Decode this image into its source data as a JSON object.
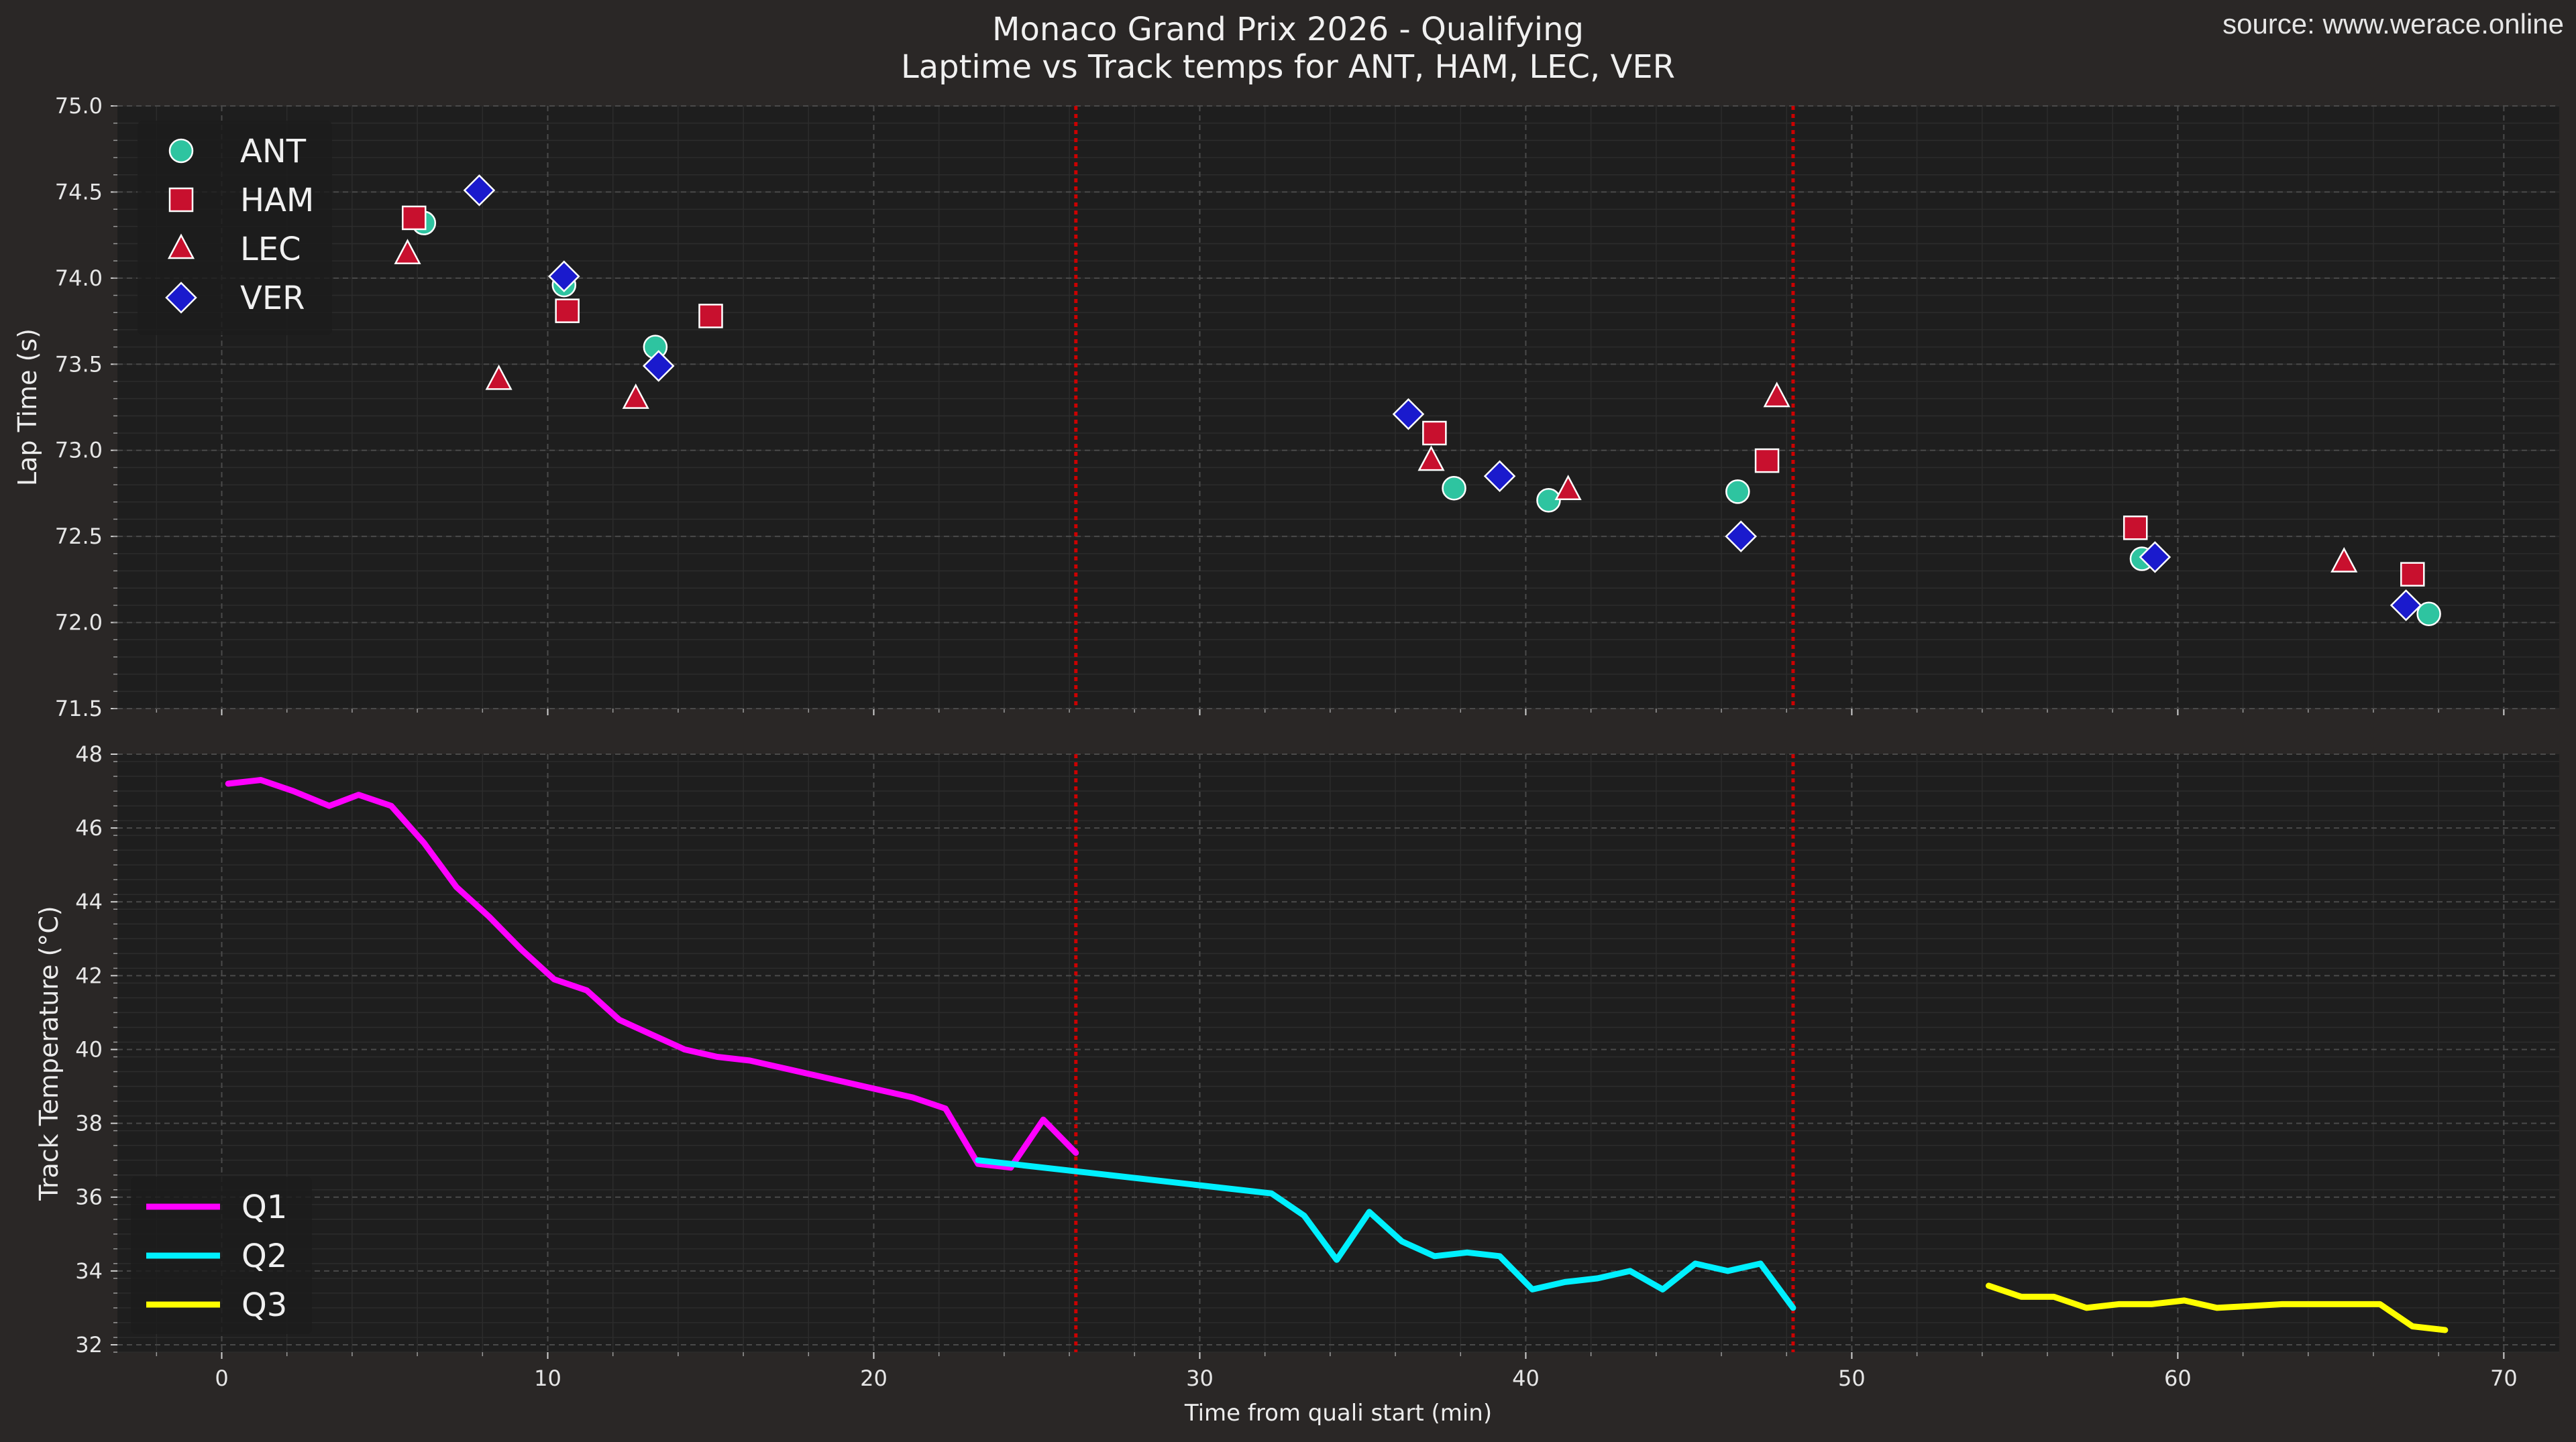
{
  "header": {
    "title": "Monaco Grand Prix 2026 - Qualifying",
    "subtitle": "Laptime vs Track temps for ANT, HAM, LEC, VER",
    "source": "source: www.werace.online"
  },
  "chart_data": [
    {
      "type": "scatter",
      "ylabel": "Lap Time (s)",
      "xlabel": "",
      "xlim": [
        -3.2,
        71.7
      ],
      "ylim": [
        71.5,
        75.0
      ],
      "xticks": [
        0,
        10,
        20,
        30,
        40,
        50,
        60,
        70
      ],
      "yticks": [
        "71.5",
        "72.0",
        "72.5",
        "73.0",
        "73.5",
        "74.0",
        "74.5",
        "75.0"
      ],
      "grid": true,
      "legend_position": "top-left",
      "session_boundaries": [
        26.2,
        48.2
      ],
      "series": [
        {
          "name": "ANT",
          "marker": "circle",
          "color": "#2ec4a0",
          "points": [
            [
              6.2,
              74.32
            ],
            [
              10.5,
              73.96
            ],
            [
              13.3,
              73.6
            ],
            [
              37.8,
              72.78
            ],
            [
              40.7,
              72.71
            ],
            [
              46.5,
              72.76
            ],
            [
              58.9,
              72.37
            ],
            [
              67.7,
              72.05
            ]
          ]
        },
        {
          "name": "HAM",
          "marker": "square",
          "color": "#c8102e",
          "points": [
            [
              5.9,
              74.35
            ],
            [
              10.6,
              73.81
            ],
            [
              15.0,
              73.78
            ],
            [
              37.2,
              73.1
            ],
            [
              47.4,
              72.94
            ],
            [
              58.7,
              72.55
            ],
            [
              67.2,
              72.28
            ]
          ]
        },
        {
          "name": "LEC",
          "marker": "triangle",
          "color": "#c8102e",
          "points": [
            [
              5.7,
              74.14
            ],
            [
              8.5,
              73.41
            ],
            [
              12.7,
              73.3
            ],
            [
              37.1,
              72.94
            ],
            [
              41.3,
              72.77
            ],
            [
              47.7,
              73.31
            ],
            [
              65.1,
              72.35
            ]
          ]
        },
        {
          "name": "VER",
          "marker": "diamond",
          "color": "#1a1acd",
          "points": [
            [
              7.9,
              74.51
            ],
            [
              10.5,
              74.01
            ],
            [
              13.4,
              73.49
            ],
            [
              36.4,
              73.21
            ],
            [
              39.2,
              72.85
            ],
            [
              46.6,
              72.5
            ],
            [
              59.3,
              72.38
            ],
            [
              67.0,
              72.1
            ]
          ]
        }
      ]
    },
    {
      "type": "line",
      "ylabel": "Track Temperature (°C)",
      "xlabel": "Time from quali start (min)",
      "xlim": [
        -3.2,
        71.7
      ],
      "ylim": [
        31.8,
        48.0
      ],
      "xticks": [
        0,
        10,
        20,
        30,
        40,
        50,
        60,
        70
      ],
      "yticks": [
        "32",
        "34",
        "36",
        "38",
        "40",
        "42",
        "44",
        "46",
        "48"
      ],
      "grid": true,
      "legend_position": "bottom-left",
      "session_boundaries": [
        26.2,
        48.2
      ],
      "series": [
        {
          "name": "Q1",
          "color": "#ff00ff",
          "points": [
            [
              0.2,
              47.2
            ],
            [
              1.2,
              47.3
            ],
            [
              2.2,
              47.0
            ],
            [
              3.3,
              46.6
            ],
            [
              4.2,
              46.9
            ],
            [
              5.2,
              46.6
            ],
            [
              6.2,
              45.6
            ],
            [
              7.2,
              44.4
            ],
            [
              8.2,
              43.6
            ],
            [
              9.2,
              42.7
            ],
            [
              10.2,
              41.9
            ],
            [
              11.2,
              41.6
            ],
            [
              12.2,
              40.8
            ],
            [
              13.2,
              40.4
            ],
            [
              14.2,
              40.0
            ],
            [
              15.2,
              39.8
            ],
            [
              16.2,
              39.7
            ],
            [
              17.2,
              39.5
            ],
            [
              18.2,
              39.3
            ],
            [
              19.2,
              39.1
            ],
            [
              20.2,
              38.9
            ],
            [
              21.2,
              38.7
            ],
            [
              22.2,
              38.4
            ],
            [
              23.2,
              36.9
            ],
            [
              24.2,
              36.8
            ],
            [
              25.2,
              38.1
            ],
            [
              26.2,
              37.2
            ]
          ]
        },
        {
          "name": "Q2",
          "color": "#00f0ff",
          "points": [
            [
              23.2,
              37.0
            ],
            [
              26.2,
              36.7
            ],
            [
              29.2,
              36.4
            ],
            [
              32.2,
              36.1
            ],
            [
              33.2,
              35.5
            ],
            [
              34.2,
              34.3
            ],
            [
              35.2,
              35.6
            ],
            [
              36.2,
              34.8
            ],
            [
              37.2,
              34.4
            ],
            [
              38.2,
              34.5
            ],
            [
              39.2,
              34.4
            ],
            [
              40.2,
              33.5
            ],
            [
              41.2,
              33.7
            ],
            [
              42.2,
              33.8
            ],
            [
              43.2,
              34.0
            ],
            [
              44.2,
              33.5
            ],
            [
              45.2,
              34.2
            ],
            [
              46.2,
              34.0
            ],
            [
              47.2,
              34.2
            ],
            [
              48.2,
              33.0
            ]
          ]
        },
        {
          "name": "Q3",
          "color": "#ffff00",
          "points": [
            [
              54.2,
              33.6
            ],
            [
              55.2,
              33.3
            ],
            [
              56.2,
              33.3
            ],
            [
              57.2,
              33.0
            ],
            [
              58.2,
              33.1
            ],
            [
              59.2,
              33.1
            ],
            [
              60.2,
              33.2
            ],
            [
              61.2,
              33.0
            ],
            [
              62.2,
              33.05
            ],
            [
              63.2,
              33.1
            ],
            [
              64.2,
              33.1
            ],
            [
              65.2,
              33.1
            ],
            [
              66.2,
              33.1
            ],
            [
              67.2,
              32.5
            ],
            [
              68.2,
              32.4
            ]
          ]
        }
      ]
    }
  ],
  "colors": {
    "page_bg": "#2a2726",
    "plot_bg": "#1e1e1e",
    "boundary_line": "#cc0000"
  }
}
